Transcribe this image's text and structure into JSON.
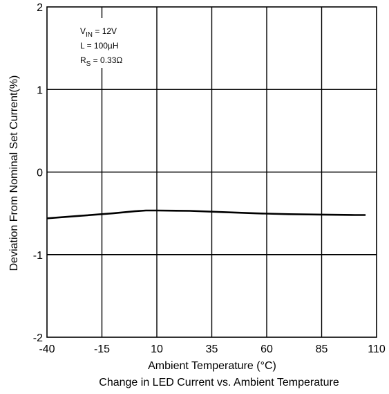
{
  "chart_data": {
    "type": "line",
    "title": "",
    "caption": "Change in LED Current vs. Ambient Temperature",
    "xlabel": "Ambient Temperature (°C)",
    "ylabel": "Deviation From Nominal Set Current(%)",
    "xlim": [
      -40,
      110
    ],
    "ylim": [
      -2,
      2
    ],
    "xticks": [
      -40,
      -15,
      10,
      35,
      60,
      85,
      110
    ],
    "yticks": [
      -2,
      -1,
      0,
      1,
      2
    ],
    "xtick_labels": [
      "-40",
      "-15",
      "10",
      "35",
      "60",
      "85",
      "110"
    ],
    "ytick_labels": [
      "-2",
      "-1",
      "0",
      "1",
      "2"
    ],
    "grid": true,
    "legend": "none",
    "series": [
      {
        "color": "#000000",
        "x": [
          -40,
          -25,
          -10,
          0,
          5,
          10,
          25,
          40,
          55,
          70,
          85,
          100,
          105
        ],
        "y": [
          -0.56,
          -0.53,
          -0.5,
          -0.475,
          -0.465,
          -0.465,
          -0.47,
          -0.485,
          -0.5,
          -0.51,
          -0.515,
          -0.52,
          -0.52
        ]
      }
    ],
    "annotations": [
      {
        "prefix": "V",
        "sub": "IN",
        "suffix": " = 12V"
      },
      {
        "prefix": "L = 100µH",
        "sub": "",
        "suffix": ""
      },
      {
        "prefix": "R",
        "sub": "S",
        "suffix": " = 0.33Ω"
      }
    ]
  }
}
